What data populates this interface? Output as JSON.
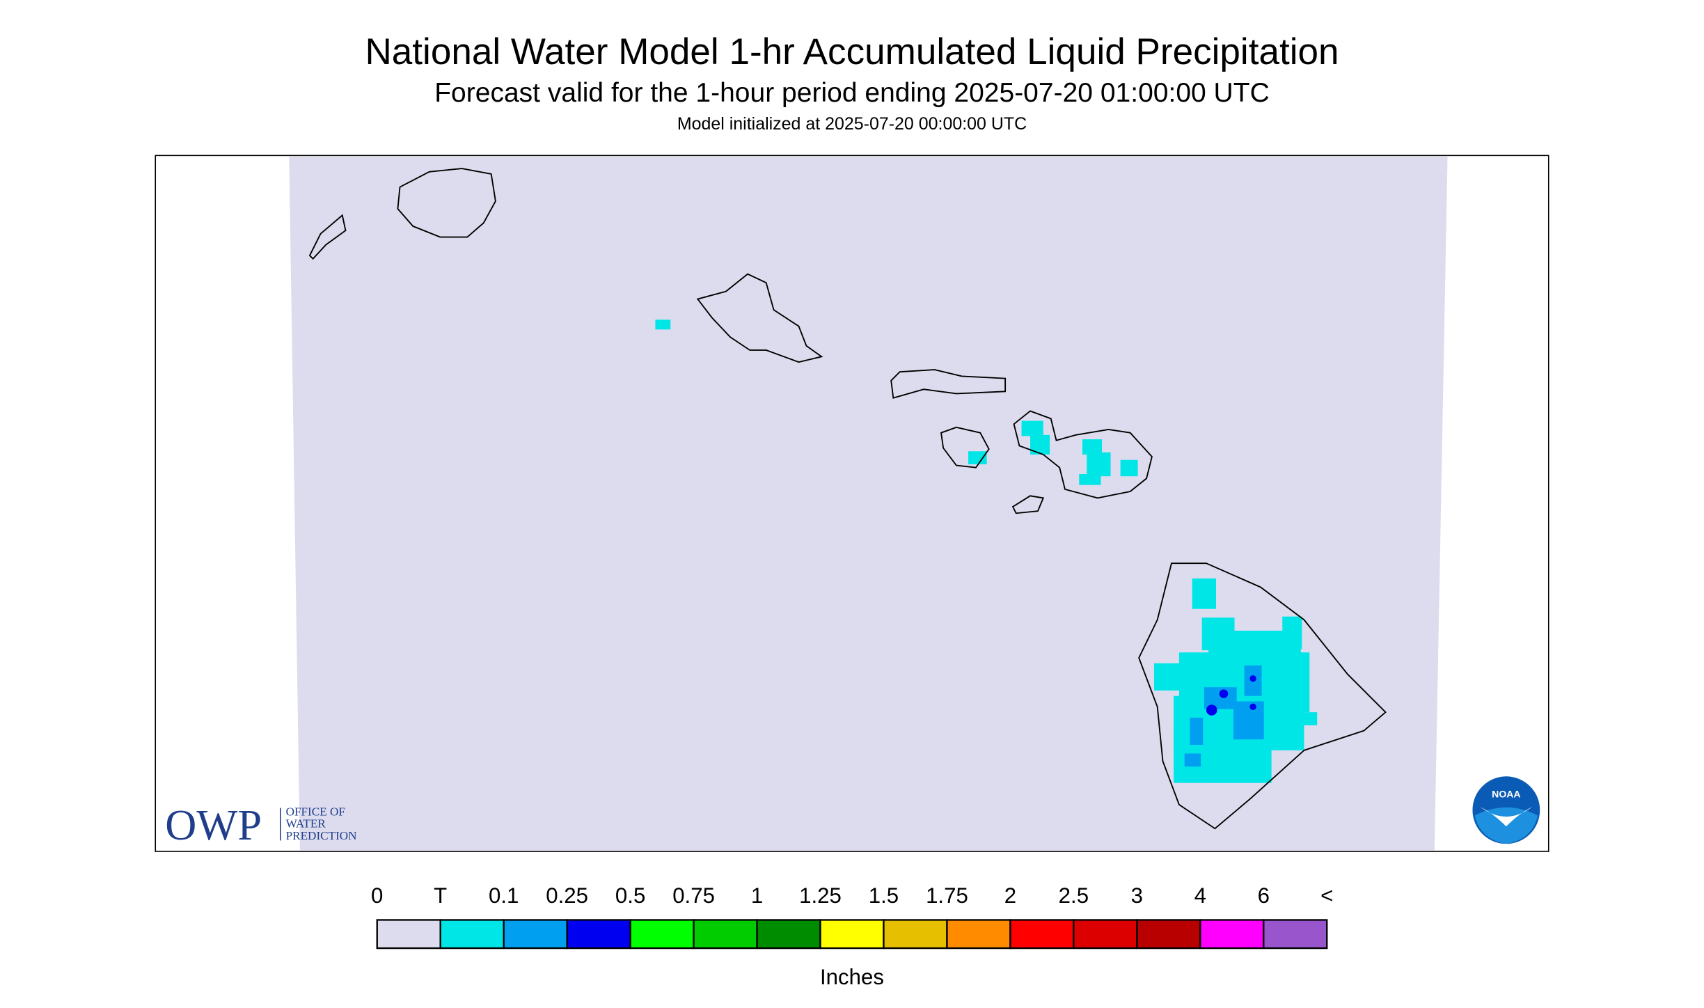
{
  "header": {
    "title": "National Water Model 1-hr Accumulated Liquid Precipitation",
    "subtitle": "Forecast valid for the 1-hour period ending 2025-07-20 01:00:00 UTC",
    "initialized": "Model initialized at 2025-07-20 00:00:00 UTC"
  },
  "legend": {
    "labels": [
      "0",
      "T",
      "0.1",
      "0.25",
      "0.5",
      "0.75",
      "1",
      "1.25",
      "1.5",
      "1.75",
      "2",
      "2.5",
      "3",
      "4",
      "6",
      "<"
    ],
    "colors": [
      "#dcdcee",
      "#00e6e6",
      "#009ff0",
      "#0000f0",
      "#00ff00",
      "#00cc00",
      "#008c00",
      "#ffff00",
      "#e6c000",
      "#ff8c00",
      "#ff0000",
      "#dc0000",
      "#b90000",
      "#ff00ff",
      "#9955cc"
    ],
    "unit": "Inches"
  },
  "logos": {
    "owp": "OWP",
    "owp_lines": [
      "OFFICE OF",
      "WATER",
      "PREDICTION"
    ],
    "noaa": "NOAA"
  }
}
